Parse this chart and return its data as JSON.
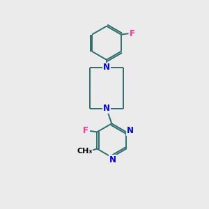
{
  "bg_color": "#ebebeb",
  "bond_color": "#2d6e6e",
  "N_color": "#0000ee",
  "F_color": "#ff3399",
  "line_width": 1.4,
  "font_size": 8.5,
  "fig_size": [
    3.0,
    3.0
  ],
  "dpi": 100,
  "xlim": [
    0,
    10
  ],
  "ylim": [
    0,
    10
  ]
}
